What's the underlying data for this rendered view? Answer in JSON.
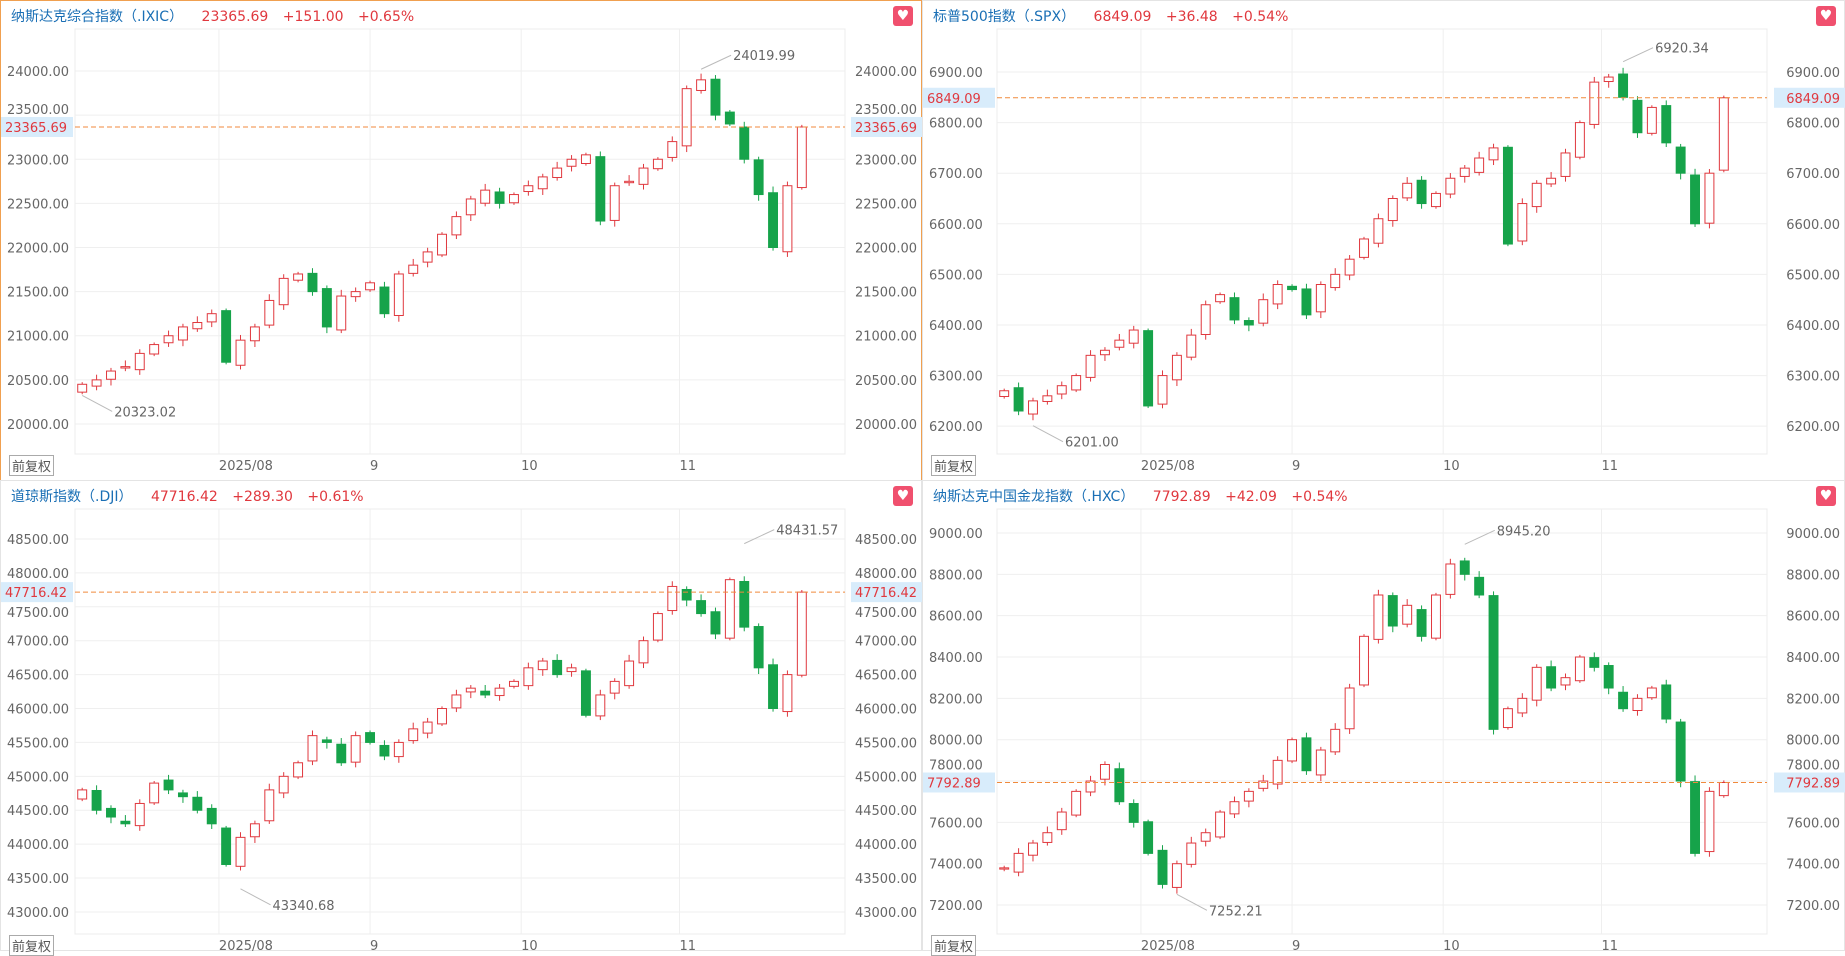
{
  "adjust_label": "前复权",
  "x_ticks": [
    "2025/08",
    "9",
    "10",
    "11"
  ],
  "colors": {
    "up": "#e0383e",
    "down": "#16a34a",
    "title": "#1a6fb5",
    "price_line": "#f08a3c",
    "price_tag_bg": "#d8ecfb"
  },
  "chart_data": [
    {
      "type": "candlestick",
      "title": "纳斯达克综合指数（.IXIC）",
      "price": "23365.69",
      "change": "+151.00",
      "pct": "+0.65%",
      "selected": true,
      "ylim": [
        19660,
        24476
      ],
      "yticks": [
        "20000.00",
        "20500.00",
        "21000.00",
        "21500.00",
        "22000.00",
        "22500.00",
        "23000.00",
        "23500.00",
        "24000.00"
      ],
      "ytick_values": [
        20000,
        20500,
        21000,
        21500,
        22000,
        22500,
        23000,
        23500,
        24000
      ],
      "high_label": "24019.99",
      "high_value": 24019.99,
      "low_label": "20323.02",
      "low_value": 20323.02,
      "current_label": "23365.69",
      "closes": [
        20450,
        20500,
        20600,
        20650,
        20800,
        20900,
        21000,
        21100,
        21150,
        21250,
        20700,
        20950,
        21100,
        21400,
        21650,
        21700,
        21500,
        21100,
        21450,
        21500,
        21600,
        21250,
        21700,
        21800,
        21950,
        22150,
        22350,
        22550,
        22650,
        22500,
        22600,
        22700,
        22800,
        22900,
        23000,
        23050,
        22300,
        22700,
        22750,
        22900,
        23000,
        23200,
        23800,
        23900,
        23500,
        23400,
        23000,
        22600,
        22000,
        22700,
        23365.69
      ]
    },
    {
      "type": "candlestick",
      "title": "标普500指数（.SPX）",
      "price": "6849.09",
      "change": "+36.48",
      "pct": "+0.54%",
      "selected": false,
      "ylim": [
        6145,
        6985
      ],
      "yticks": [
        "6200.00",
        "6300.00",
        "6400.00",
        "6500.00",
        "6600.00",
        "6700.00",
        "6800.00",
        "6900.00"
      ],
      "ytick_values": [
        6200,
        6300,
        6400,
        6500,
        6600,
        6700,
        6800,
        6900
      ],
      "high_label": "6920.34",
      "high_value": 6920.34,
      "low_label": "6201.00",
      "low_value": 6201.0,
      "current_label": "6849.09",
      "closes": [
        6270,
        6230,
        6250,
        6260,
        6280,
        6300,
        6340,
        6350,
        6370,
        6390,
        6240,
        6300,
        6340,
        6380,
        6440,
        6460,
        6410,
        6400,
        6450,
        6480,
        6470,
        6420,
        6480,
        6500,
        6530,
        6570,
        6610,
        6650,
        6680,
        6640,
        6660,
        6690,
        6710,
        6730,
        6750,
        6560,
        6640,
        6680,
        6690,
        6740,
        6800,
        6880,
        6890,
        6850,
        6780,
        6830,
        6760,
        6700,
        6600,
        6700,
        6849.09
      ]
    },
    {
      "type": "candlestick",
      "title": "道琼斯指数（.DJI）",
      "price": "47716.42",
      "change": "+289.30",
      "pct": "+0.61%",
      "selected": false,
      "ylim": [
        42675,
        48942
      ],
      "yticks": [
        "43000.00",
        "43500.00",
        "44000.00",
        "44500.00",
        "45000.00",
        "45500.00",
        "46000.00",
        "46500.00",
        "47000.00",
        "47500.00",
        "48000.00",
        "48500.00"
      ],
      "ytick_values": [
        43000,
        43500,
        44000,
        44500,
        45000,
        45500,
        46000,
        46500,
        47000,
        47500,
        48000,
        48500
      ],
      "high_label": "48431.57",
      "high_value": 48431.57,
      "low_label": "43340.68",
      "low_value": 43340.68,
      "current_label": "47716.42",
      "closes": [
        44800,
        44500,
        44400,
        44300,
        44600,
        44900,
        44800,
        44700,
        44500,
        44300,
        43700,
        44100,
        44300,
        44800,
        45000,
        45200,
        45600,
        45500,
        45200,
        45600,
        45500,
        45300,
        45500,
        45700,
        45800,
        46000,
        46200,
        46300,
        46200,
        46300,
        46400,
        46600,
        46700,
        46500,
        46600,
        45900,
        46200,
        46400,
        46700,
        47000,
        47400,
        47800,
        47600,
        47400,
        47100,
        47900,
        47200,
        46600,
        46000,
        46500,
        47716.42
      ]
    },
    {
      "type": "candlestick",
      "title": "纳斯达克中国金龙指数（.HXC）",
      "price": "7792.89",
      "change": "+42.09",
      "pct": "+0.54%",
      "selected": false,
      "ylim": [
        7060,
        9116
      ],
      "yticks": [
        "7200.00",
        "7400.00",
        "7600.00",
        "7800.00",
        "8000.00",
        "8200.00",
        "8400.00",
        "8600.00",
        "8800.00",
        "9000.00"
      ],
      "ytick_values": [
        7200,
        7400,
        7600,
        7800,
        8000,
        8200,
        8400,
        8600,
        8800,
        9000
      ],
      "high_label": "8945.20",
      "high_value": 8945.2,
      "low_label": "7252.21",
      "low_value": 7252.21,
      "current_label": "7792.89",
      "closes": [
        7380,
        7450,
        7500,
        7550,
        7650,
        7750,
        7800,
        7880,
        7700,
        7600,
        7450,
        7300,
        7400,
        7500,
        7550,
        7650,
        7700,
        7750,
        7800,
        7900,
        8000,
        7850,
        7950,
        8050,
        8250,
        8500,
        8700,
        8550,
        8650,
        8500,
        8700,
        8850,
        8800,
        8700,
        8050,
        8150,
        8200,
        8350,
        8250,
        8300,
        8400,
        8350,
        8250,
        8150,
        8200,
        8250,
        8100,
        7800,
        7450,
        7750,
        7792.89
      ]
    }
  ]
}
